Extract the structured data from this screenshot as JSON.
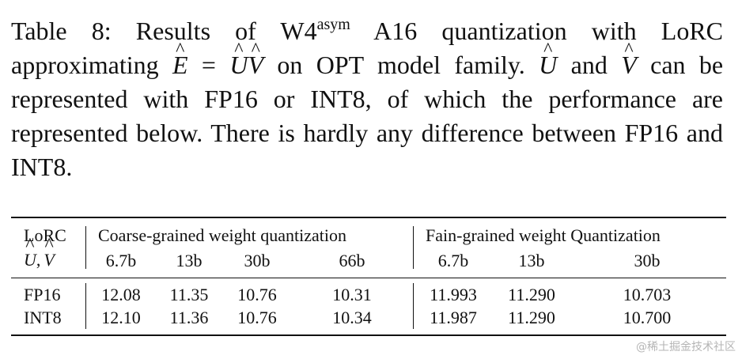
{
  "caption": {
    "label": "Table 8:",
    "part1": "Results of W4",
    "sup": "asym",
    "part2": "A16 quantization with LoRC approximating",
    "E": "E",
    "eq": "=",
    "U": "U",
    "V": "V",
    "part3": "on OPT model family.",
    "and": "and",
    "part4": "can be represented with FP16 or INT8, of which the performance are represented below. There is hardly any difference between FP16 and INT8."
  },
  "table": {
    "header": {
      "col0_line1": "LoRC",
      "col0_line2_U": "U",
      "col0_line2_sep": ",",
      "col0_line2_V": "V",
      "group1": "Coarse-grained weight quantization",
      "group2": "Fain-grained weight Quantization",
      "group1_sizes": [
        "6.7b",
        "13b",
        "30b",
        "66b"
      ],
      "group2_sizes": [
        "6.7b",
        "13b",
        "30b"
      ]
    },
    "rows": [
      {
        "label": "FP16",
        "coarse": [
          "12.08",
          "11.35",
          "10.76",
          "10.31"
        ],
        "fine": [
          "11.993",
          "11.290",
          "10.703"
        ]
      },
      {
        "label": "INT8",
        "coarse": [
          "12.10",
          "11.36",
          "10.76",
          "10.34"
        ],
        "fine": [
          "11.987",
          "11.290",
          "10.700"
        ]
      }
    ]
  },
  "watermark": "@稀土掘金技术社区"
}
